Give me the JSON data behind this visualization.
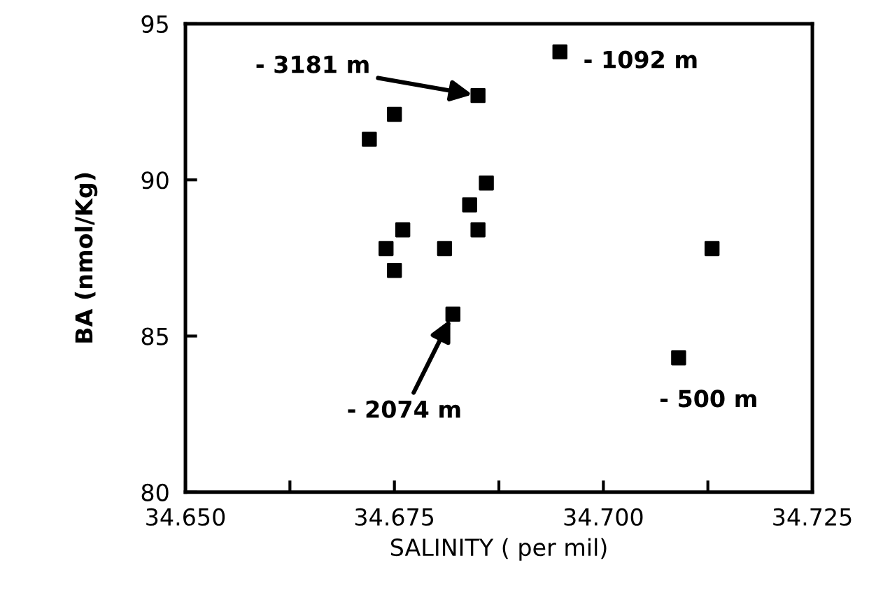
{
  "chart_data": {
    "type": "scatter",
    "xlabel": "SALINITY ( per mil)",
    "ylabel": "BA (nmol/Kg)",
    "x": [
      34.685,
      34.675,
      34.672,
      34.686,
      34.684,
      34.685,
      34.676,
      34.674,
      34.681,
      34.675,
      34.682,
      34.713,
      34.709,
      34.6948
    ],
    "series": [
      {
        "color": "#000000",
        "values": [
          92.7,
          92.1,
          91.3,
          89.9,
          89.2,
          88.4,
          88.4,
          87.8,
          87.8,
          87.1,
          85.7,
          87.8,
          84.3,
          94.1
        ]
      }
    ],
    "marker": "square",
    "grid": false,
    "xlim": [
      34.65,
      34.725
    ],
    "ylim": [
      80,
      95
    ],
    "xticks": [
      {
        "value": 34.65,
        "label": "34.650"
      },
      {
        "value": 34.6625,
        "label": null
      },
      {
        "value": 34.675,
        "label": "34.675"
      },
      {
        "value": 34.6875,
        "label": null
      },
      {
        "value": 34.7,
        "label": "34.700"
      },
      {
        "value": 34.7125,
        "label": null
      },
      {
        "value": 34.725,
        "label": "34.725"
      }
    ],
    "yticks": [
      80,
      85,
      90,
      95
    ],
    "annotations": [
      {
        "text": "- 3181 m",
        "x": 34.685,
        "y": 92.7
      },
      {
        "text": "- 1092 m",
        "x": 34.6948,
        "y": 94.1
      },
      {
        "text": "- 2074 m",
        "x": 34.682,
        "y": 85.7
      },
      {
        "text": "- 500 m",
        "x": 34.709,
        "y": 84.3
      }
    ]
  }
}
